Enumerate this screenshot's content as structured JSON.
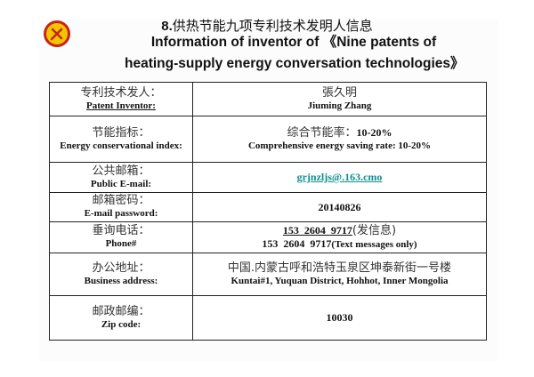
{
  "title_cn_prefix": "8.",
  "title_cn": "供热节能九项专利技术发明人信息",
  "title_en": "Information of inventor of 《Nine patents of heating-supply energy conversation technologies》",
  "rows": [
    {
      "label_cn": "专利技术发人：",
      "label_en": "Patent Inventor:",
      "value_cn": "張久明",
      "value_en": "Jiuming Zhang"
    },
    {
      "label_cn": "节能指标：",
      "label_en": "Energy conservational index:",
      "value_cn": "综合节能率：",
      "value_cn_num": "10-20%",
      "value_en": "Comprehensive energy saving rate: 10-20%"
    },
    {
      "label_cn": "公共邮箱：",
      "label_en": "Public E-mail:",
      "value": "grjnzljs@.163.cmo"
    },
    {
      "label_cn": "邮箱密码：",
      "label_en": "E-mail password:",
      "value": "20140826"
    },
    {
      "label_cn": "垂询电话：",
      "label_en": "Phone#",
      "phone1": "153  2604  9717",
      "phone1_note": "(发信息)",
      "phone2": "153  2604  9717",
      "phone2_note": "(Text messages only)"
    },
    {
      "label_cn": "办公地址：",
      "label_en": "Business address:",
      "value_cn": "中国.内蒙古呼和浩特玉泉区坤泰新街一号楼",
      "value_en": "Kuntai#1, Yuquan District, Hohhot, Inner Mongolia"
    },
    {
      "label_cn": "邮政邮编：",
      "label_en": "Zip code:",
      "value": "10030"
    }
  ],
  "colors": {
    "link": "#0e8f8f",
    "logo_fill": "#f2c500",
    "logo_ring": "#c8231a"
  }
}
